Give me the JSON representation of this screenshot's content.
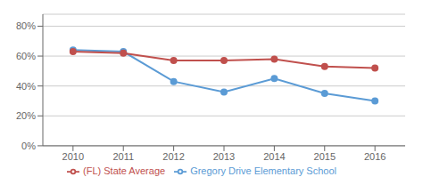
{
  "chart_data": {
    "type": "line",
    "x": [
      2010,
      2011,
      2012,
      2013,
      2014,
      2015,
      2016
    ],
    "series": [
      {
        "name": "Gregory Drive Elementary School",
        "color": "#5b9bd5",
        "values": [
          0.64,
          0.63,
          0.43,
          0.36,
          0.45,
          0.35,
          0.3
        ],
        "marker": "circle"
      },
      {
        "name": "(FL) State Average",
        "color": "#c0504d",
        "values": [
          0.63,
          0.62,
          0.57,
          0.57,
          0.58,
          0.53,
          0.52
        ],
        "marker": "circle"
      }
    ],
    "xlim": [
      2009.4,
      2016.6
    ],
    "xticks": [
      2010,
      2011,
      2012,
      2013,
      2014,
      2015,
      2016
    ],
    "ylim": [
      0,
      0.88
    ],
    "yticks": [
      {
        "value": 0.0,
        "label": "0%"
      },
      {
        "value": 0.2,
        "label": "20%"
      },
      {
        "value": 0.4,
        "label": "40%"
      },
      {
        "value": 0.6,
        "label": "60%"
      },
      {
        "value": 0.8,
        "label": "80%"
      }
    ],
    "grid": true,
    "legend": "bottom"
  }
}
